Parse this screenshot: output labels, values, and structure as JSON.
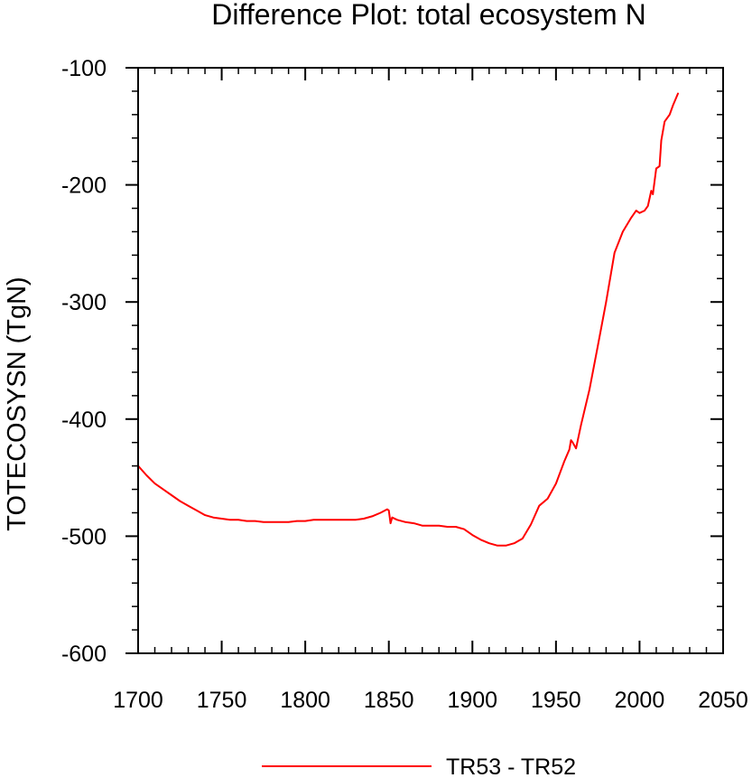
{
  "chart_data": {
    "type": "line",
    "title": "Difference Plot: total ecosystem N",
    "xlabel": "",
    "ylabel": "TOTECOSYSN  (TgN)",
    "xlim": [
      1700,
      2050
    ],
    "ylim": [
      -600,
      -100
    ],
    "xticks": [
      1700,
      1750,
      1800,
      1850,
      1900,
      1950,
      2000,
      2050
    ],
    "yticks": [
      -600,
      -500,
      -400,
      -300,
      -200,
      -100
    ],
    "grid": false,
    "legend_position": "bottom-center",
    "series": [
      {
        "name": "TR53 - TR52",
        "color": "#ff0000",
        "x": [
          1700,
          1705,
          1710,
          1715,
          1720,
          1725,
          1730,
          1735,
          1740,
          1745,
          1750,
          1755,
          1760,
          1765,
          1770,
          1775,
          1780,
          1785,
          1790,
          1795,
          1800,
          1805,
          1810,
          1815,
          1820,
          1825,
          1830,
          1835,
          1840,
          1845,
          1849,
          1850,
          1851,
          1852,
          1855,
          1860,
          1865,
          1870,
          1875,
          1880,
          1885,
          1890,
          1895,
          1900,
          1905,
          1910,
          1915,
          1920,
          1925,
          1930,
          1935,
          1940,
          1945,
          1950,
          1955,
          1958,
          1959,
          1960,
          1962,
          1965,
          1970,
          1975,
          1980,
          1985,
          1990,
          1995,
          1998,
          2000,
          2003,
          2005,
          2007,
          2008,
          2010,
          2012,
          2013,
          2015,
          2018,
          2020,
          2023
        ],
        "y": [
          -440,
          -448,
          -455,
          -460,
          -465,
          -470,
          -474,
          -478,
          -482,
          -484,
          -485,
          -486,
          -486,
          -487,
          -487,
          -488,
          -488,
          -488,
          -488,
          -487,
          -487,
          -486,
          -486,
          -486,
          -486,
          -486,
          -486,
          -485,
          -483,
          -480,
          -477,
          -478,
          -489,
          -484,
          -486,
          -488,
          -489,
          -491,
          -491,
          -491,
          -492,
          -492,
          -494,
          -499,
          -503,
          -506,
          -508,
          -508,
          -506,
          -502,
          -490,
          -474,
          -468,
          -455,
          -436,
          -426,
          -418,
          -420,
          -425,
          -405,
          -375,
          -338,
          -300,
          -258,
          -240,
          -228,
          -222,
          -224,
          -222,
          -218,
          -205,
          -208,
          -186,
          -184,
          -162,
          -146,
          -140,
          -132,
          -122
        ]
      }
    ]
  }
}
